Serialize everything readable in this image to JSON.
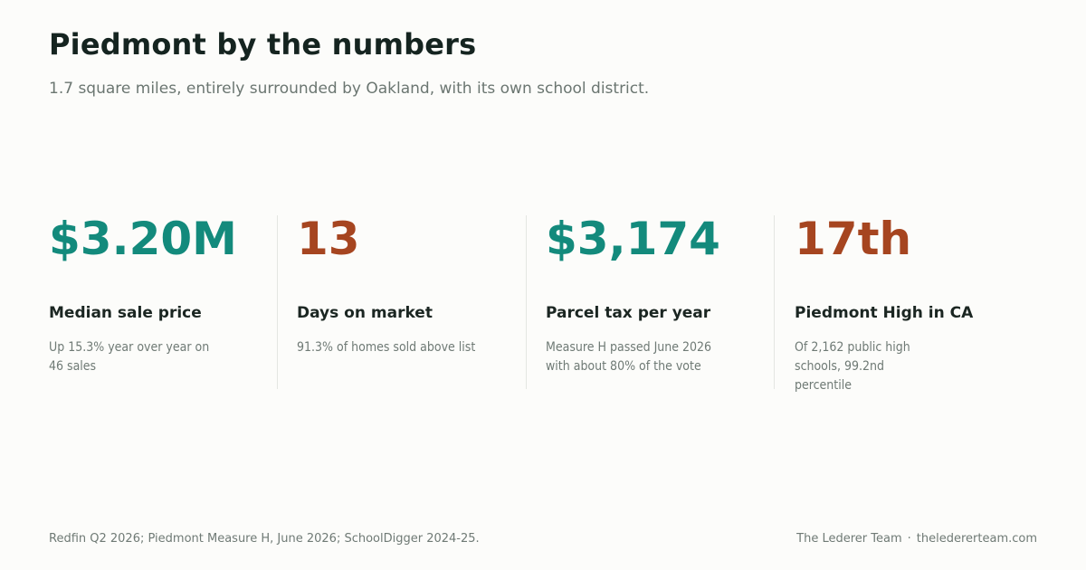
{
  "header": {
    "title": "Piedmont by the numbers",
    "subtitle": "1.7 square miles, entirely surrounded by Oakland, with its own school district."
  },
  "stats": [
    {
      "value": "$3.20M",
      "label": "Median sale price",
      "description": "Up 15.3% year over year on 46 sales",
      "accent": "#138a7c"
    },
    {
      "value": "13",
      "label": "Days on market",
      "description": "91.3% of homes sold above list",
      "accent": "#a64520"
    },
    {
      "value": "$3,174",
      "label": "Parcel tax per year",
      "description": "Measure H passed June 2026 with about 80% of the vote",
      "accent": "#138a7c"
    },
    {
      "value": "17th",
      "label": "Piedmont High in CA",
      "description": "Of 2,162 public high schools, 99.2nd percentile",
      "accent": "#a64520"
    }
  ],
  "footer": {
    "sources": "Redfin Q2 2026; Piedmont Measure H, June 2026; SchoolDigger 2024-25.",
    "brand": "The Lederer Team",
    "separator": "·",
    "website": "theledererteam.com"
  }
}
